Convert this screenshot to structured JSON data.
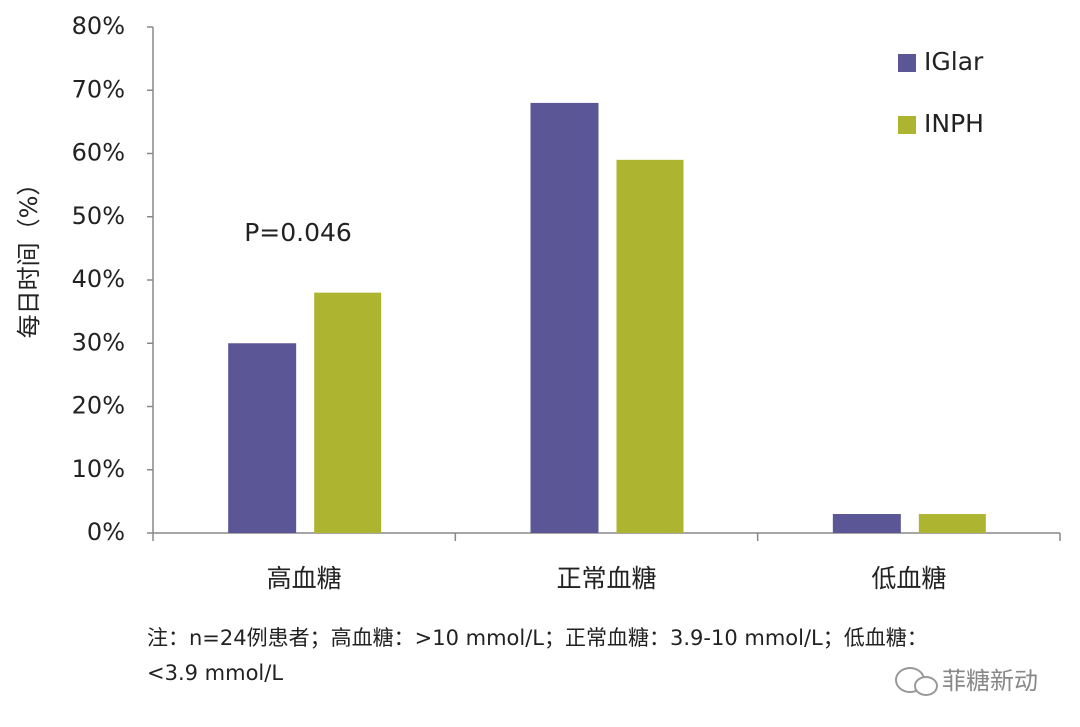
{
  "chart_data": {
    "type": "bar",
    "y_label": "每日时间（%）",
    "categories": [
      "高血糖",
      "正常血糖",
      "低血糖"
    ],
    "series": [
      {
        "name": "IGlar",
        "color": "#5b5796",
        "values": [
          30,
          68,
          3
        ]
      },
      {
        "name": "INPH",
        "color": "#adb42f",
        "values": [
          38,
          59,
          3
        ]
      }
    ],
    "ylim": [
      0,
      80
    ],
    "yticks": [
      {
        "value": 0,
        "label": "0%"
      },
      {
        "value": 10,
        "label": "10%"
      },
      {
        "value": 20,
        "label": "20%"
      },
      {
        "value": 30,
        "label": "30%"
      },
      {
        "value": 40,
        "label": "40%"
      },
      {
        "value": 50,
        "label": "50%"
      },
      {
        "value": 60,
        "label": "60%"
      },
      {
        "value": 70,
        "label": "70%"
      },
      {
        "value": 80,
        "label": "80%"
      }
    ],
    "annotation": "P=0.046",
    "legend_position": "upper right",
    "grid": false,
    "footnote": [
      "注：n=24例患者；高血糖：>10  mmol/L；正常血糖：3.9-10  mmol/L；低血糖：",
      "<3.9 mmol/L"
    ],
    "watermark": "菲糖新动"
  }
}
